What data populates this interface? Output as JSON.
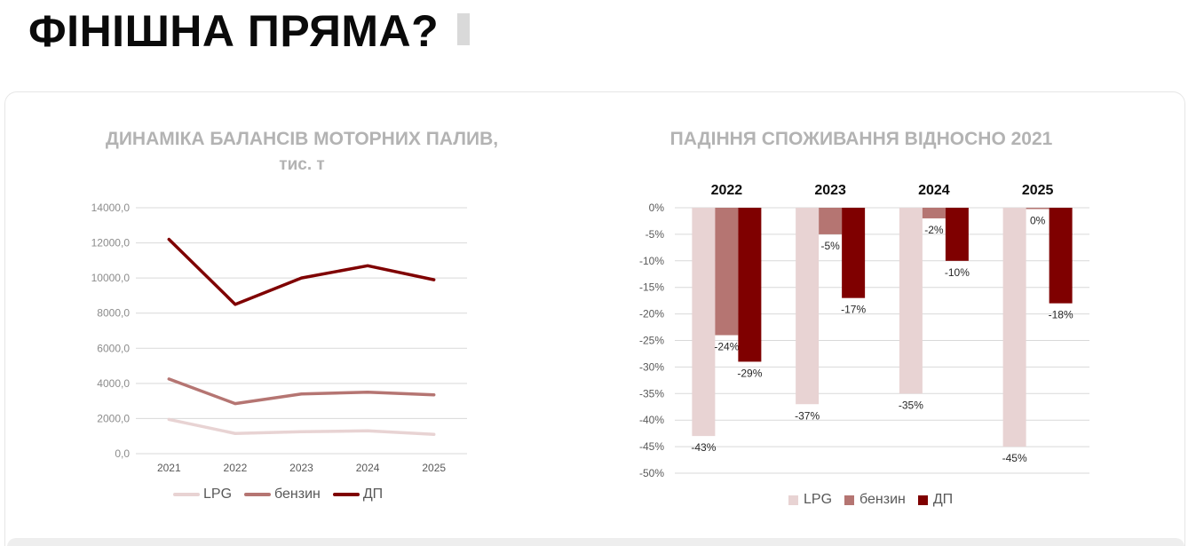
{
  "page": {
    "title": "ФІНІШНА ПРЯМА?"
  },
  "colors": {
    "lpg": "#e8d3d3",
    "benzin": "#b57572",
    "dp": "#7f0000",
    "grid": "#d9d9d9",
    "title_gray": "#b3b3b3"
  },
  "chart_data": [
    {
      "type": "line",
      "title": "ДИНАМІКА БАЛАНСІВ МОТОРНИХ ПАЛИВ,",
      "subtitle": "тис. т",
      "categories": [
        "2021",
        "2022",
        "2023",
        "2024",
        "2025"
      ],
      "ylim": [
        0,
        14000
      ],
      "yticks": [
        "0,0",
        "2000,0",
        "4000,0",
        "6000,0",
        "8000,0",
        "10000,0",
        "12000,0",
        "14000,0"
      ],
      "grid": true,
      "legend": "bottom",
      "series": [
        {
          "name": "LPG",
          "color": "#e8d3d3",
          "values": [
            1950,
            1150,
            1250,
            1300,
            1100
          ]
        },
        {
          "name": "бензин",
          "color": "#b57572",
          "values": [
            4250,
            2850,
            3400,
            3500,
            3350
          ]
        },
        {
          "name": "ДП",
          "color": "#7f0000",
          "values": [
            12200,
            8500,
            10000,
            10700,
            9900
          ]
        }
      ]
    },
    {
      "type": "bar",
      "title": "ПАДІННЯ СПОЖИВАННЯ ВІДНОСНО 2021",
      "categories": [
        "2022",
        "2023",
        "2024",
        "2025"
      ],
      "ylim": [
        -50,
        0
      ],
      "yticks": [
        "0%",
        "-5%",
        "-10%",
        "-15%",
        "-20%",
        "-25%",
        "-30%",
        "-35%",
        "-40%",
        "-45%",
        "-50%"
      ],
      "grid": true,
      "legend": "bottom",
      "series": [
        {
          "name": "LPG",
          "color": "#e8d3d3",
          "values": [
            -43,
            -37,
            -35,
            -45
          ],
          "labels": [
            "-43%",
            "-37%",
            "-35%",
            "-45%"
          ]
        },
        {
          "name": "бензин",
          "color": "#b57572",
          "values": [
            -24,
            -5,
            -2,
            0
          ],
          "labels": [
            "-24%",
            "-5%",
            "-2%",
            "0%"
          ]
        },
        {
          "name": "ДП",
          "color": "#7f0000",
          "values": [
            -29,
            -17,
            -10,
            -18
          ],
          "labels": [
            "-29%",
            "-17%",
            "-10%",
            "-18%"
          ]
        }
      ]
    }
  ]
}
